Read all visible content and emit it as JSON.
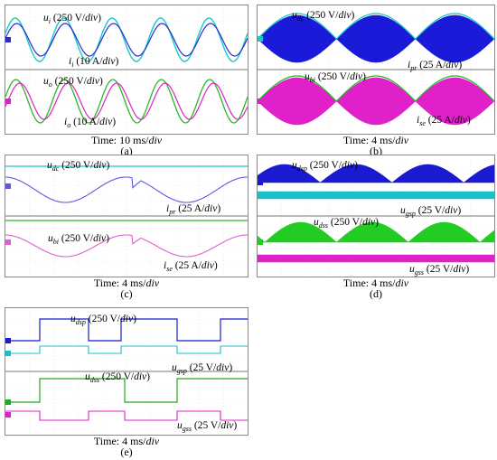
{
  "chart_data": [
    {
      "type": "line",
      "panel": "(a)",
      "time_label": "Time: 10 ms/div",
      "series": [
        {
          "name": "ui (250 V/div)",
          "color": "#19c8c8",
          "waveform": "sinusoid",
          "cycles_shown": 5
        },
        {
          "name": "ii (10 A/div)",
          "color": "#2a2ad0",
          "waveform": "sinusoid",
          "cycles_shown": 5
        },
        {
          "name": "uo (250 V/div)",
          "color": "#2ab82a",
          "waveform": "sinusoid",
          "cycles_shown": 5
        },
        {
          "name": "io (10 A/div)",
          "color": "#e020c8",
          "waveform": "sinusoid",
          "cycles_shown": 5
        }
      ]
    },
    {
      "type": "line",
      "panel": "(b)",
      "time_label": "Time: 4 ms/div",
      "series": [
        {
          "name": "udc (250 V/div)",
          "color": "#19c8c8",
          "waveform": "rectified sinusoid envelope",
          "humps_shown": 3
        },
        {
          "name": "ipr (25 A/div)",
          "color": "#1a1ad8",
          "waveform": "high-frequency current with rectified sinusoid envelope",
          "humps_shown": 3
        },
        {
          "name": "ubi (250 V/div)",
          "color": "#2ab82a",
          "waveform": "rectified sinusoid envelope",
          "humps_shown": 3
        },
        {
          "name": "ise (25 A/div)",
          "color": "#e020c8",
          "waveform": "high-frequency current with rectified sinusoid envelope",
          "humps_shown": 3
        }
      ]
    },
    {
      "type": "line",
      "panel": "(c)",
      "time_label": "Time: 4 ms/div",
      "series": [
        {
          "name": "udc (250 V/div)",
          "color": "#19c8c8",
          "waveform": "flat DC level"
        },
        {
          "name": "ipr (25 A/div)",
          "color": "#5a5ae0",
          "waveform": "sinusoid with step at cusp",
          "cycles_shown": 2
        },
        {
          "name": "ubi (250 V/div)",
          "color": "#2ab82a",
          "waveform": "flat DC level"
        },
        {
          "name": "ise (25 A/div)",
          "color": "#e060d0",
          "waveform": "sinusoid with step at cusp",
          "cycles_shown": 2
        }
      ]
    },
    {
      "type": "line",
      "panel": "(d)",
      "time_label": "Time: 4 ms/div",
      "series": [
        {
          "name": "udsp (250 V/div)",
          "color": "#1a1ad0",
          "waveform": "switched voltage with rectified sinusoid envelope",
          "humps_shown": 3
        },
        {
          "name": "ugsp (25 V/div)",
          "color": "#19c0c8",
          "waveform": "gate pulses, constant amplitude"
        },
        {
          "name": "udss (250 V/div)",
          "color": "#22cc22",
          "waveform": "switched voltage with rectified sinusoid envelope",
          "humps_shown": 3
        },
        {
          "name": "ugss (25 V/div)",
          "color": "#e020c8",
          "waveform": "gate pulses, constant amplitude"
        }
      ]
    },
    {
      "type": "line",
      "panel": "(e)",
      "time_label": "Time: 4 ms/div",
      "series": [
        {
          "name": "udsp (250 V/div)",
          "color": "#1a1ad0",
          "waveform": "square wave"
        },
        {
          "name": "ugsp (25 V/div)",
          "color": "#19c0c8",
          "waveform": "square wave"
        },
        {
          "name": "udss (250 V/div)",
          "color": "#22aa22",
          "waveform": "square wave"
        },
        {
          "name": "ugss (25 V/div)",
          "color": "#e020c8",
          "waveform": "square wave"
        }
      ]
    }
  ],
  "captions": {
    "a": "(a)",
    "b": "(b)",
    "c": "(c)",
    "d": "(d)",
    "e": "(e)"
  },
  "time": {
    "a_prefix": "Time: 10 ms/",
    "b_prefix": "Time: 4 ms/",
    "c_prefix": "Time: 4 ms/",
    "d_prefix": "Time: 4 ms/",
    "e_prefix": "Time: 4 ms/",
    "div": "div"
  },
  "labels": {
    "u": "u",
    "i": "i",
    "sub_i": "i",
    "sub_o": "o",
    "sub_dc": "dc",
    "sub_pr": "pr",
    "sub_bi": "bi",
    "sub_se": "se",
    "sub_dsp": "dsp",
    "sub_gsp": "gsp",
    "sub_dss": "dss",
    "sub_gss": "gss",
    "v250": " (250 V/",
    "a10": " (10 A/",
    "a25": " (25 A/",
    "v25": " (25 V/",
    "div": "div",
    "close": ")"
  }
}
